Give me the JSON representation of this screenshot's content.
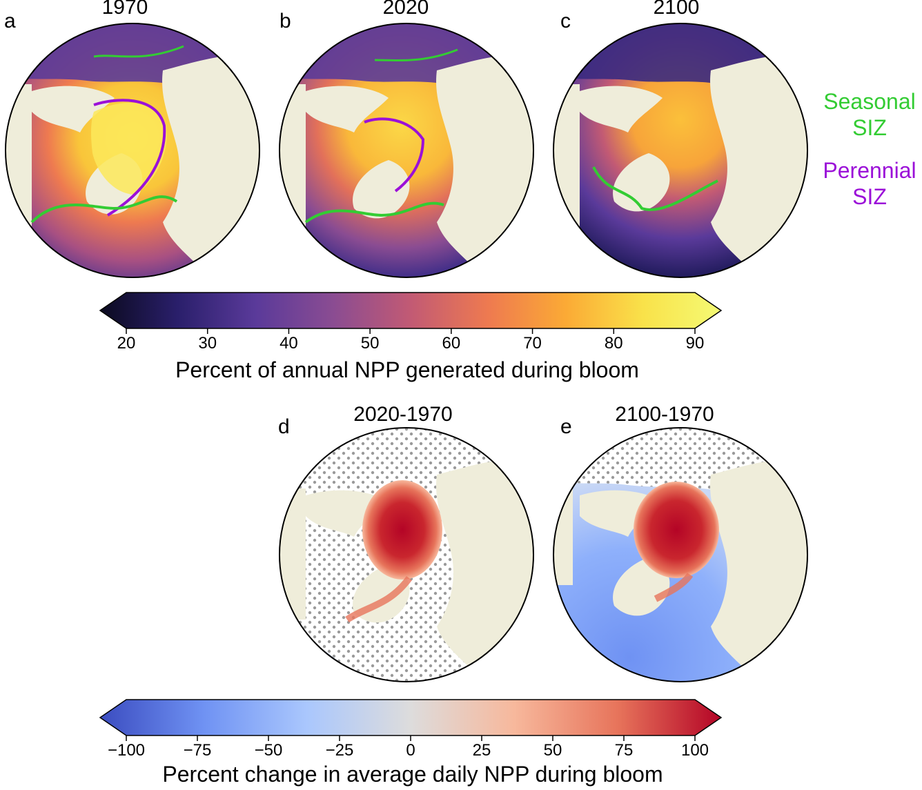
{
  "top_panels": [
    {
      "letter": "a",
      "title": "1970"
    },
    {
      "letter": "b",
      "title": "2020"
    },
    {
      "letter": "c",
      "title": "2100"
    }
  ],
  "bottom_panels": [
    {
      "letter": "d",
      "title": "2020-1970"
    },
    {
      "letter": "e",
      "title": "2100-1970"
    }
  ],
  "legend": {
    "seasonal": {
      "line1": "Seasonal",
      "line2": "SIZ",
      "color": "#33cc33"
    },
    "perennial": {
      "line1": "Perennial",
      "line2": "SIZ",
      "color": "#9b10d8"
    }
  },
  "colorbar_top": {
    "label": "Percent of annual NPP generated during bloom",
    "ticks": [
      "20",
      "30",
      "40",
      "50",
      "60",
      "70",
      "80",
      "90"
    ],
    "range": [
      20,
      90
    ],
    "colors": [
      "#0b0a1f",
      "#2a1f6b",
      "#5a3a9a",
      "#8a4c92",
      "#c25a74",
      "#ee7a50",
      "#fbaa35",
      "#f9e24a",
      "#f4fa74"
    ]
  },
  "colorbar_bottom": {
    "label": "Percent change in average daily NPP during bloom",
    "ticks": [
      "−100",
      "−75",
      "−50",
      "−25",
      "0",
      "25",
      "50",
      "75",
      "100"
    ],
    "range": [
      -100,
      100
    ],
    "colors": [
      "#3b4cc0",
      "#6f92f3",
      "#aac7fd",
      "#dddcdc",
      "#f7b89c",
      "#e7745b",
      "#b40426"
    ]
  }
}
